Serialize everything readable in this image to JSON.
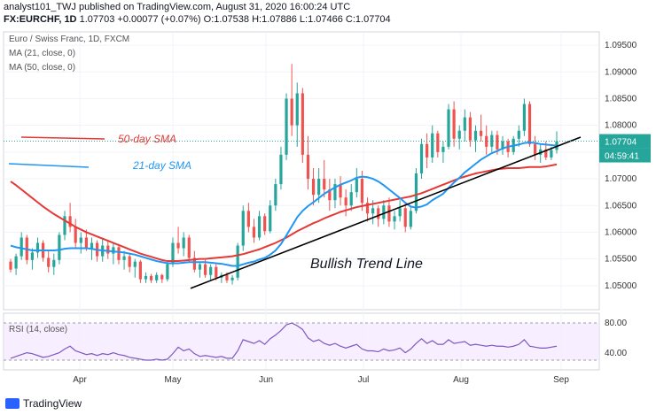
{
  "header": {
    "line1": "analyst101_TWJ published on TradingView.com, August 31, 2020 16:00:24 UTC",
    "symbol": "FX:EURCHF, 1D",
    "last": "1.07703",
    "change": "+0.00077 (+0.07%)",
    "ohlc": "O:1.07538 H:1.07886 L:1.07466 C:1.07704"
  },
  "legend": {
    "title": "Euro / Swiss Franc, 1D, FXCM",
    "ma21": "MA (21, close, 0)",
    "ma50": "MA (50, close, 0)",
    "rsi": "RSI (14, close)"
  },
  "annotations": {
    "sma50": "50-day SMA",
    "sma21": "21-day SMA",
    "trend": "Bullish Trend Line"
  },
  "price_tag": {
    "value": "1.07704",
    "countdown": "04:59:41"
  },
  "footer": {
    "brand": "TradingView"
  },
  "colors": {
    "up": "#26a69a",
    "down": "#ef5350",
    "ma21": "#2196f3",
    "ma50": "#e53935",
    "rsi": "#7e57c2",
    "trend": "#000000"
  },
  "chart_data": {
    "type": "candlestick",
    "y_ticks": [
      "1.09500",
      "1.09000",
      "1.08500",
      "1.08000",
      "1.07500",
      "1.07000",
      "1.06500",
      "1.06000",
      "1.05500",
      "1.05000"
    ],
    "ylim": [
      1.0455,
      1.0975
    ],
    "x_ticks": [
      "Apr",
      "May",
      "Jun",
      "Jul",
      "Aug",
      "Sep"
    ],
    "rsi_ticks": [
      "80.00",
      "40.00"
    ],
    "trend_line": {
      "from": [
        "May 10",
        1.0495
      ],
      "to": [
        "Aug 31",
        1.0768
      ]
    },
    "candles": [
      [
        1.0545,
        1.055,
        1.0525,
        1.053
      ],
      [
        1.0532,
        1.056,
        1.052,
        1.0555
      ],
      [
        1.0555,
        1.06,
        1.0548,
        1.059
      ],
      [
        1.059,
        1.0595,
        1.054,
        1.0548
      ],
      [
        1.0548,
        1.057,
        1.053,
        1.0562
      ],
      [
        1.0562,
        1.059,
        1.0552,
        1.058
      ],
      [
        1.058,
        1.0585,
        1.0545,
        1.0552
      ],
      [
        1.0552,
        1.0565,
        1.0525,
        1.0535
      ],
      [
        1.0535,
        1.056,
        1.052,
        1.0548
      ],
      [
        1.0548,
        1.06,
        1.054,
        1.0595
      ],
      [
        1.0595,
        1.064,
        1.0585,
        1.063
      ],
      [
        1.063,
        1.0655,
        1.06,
        1.061
      ],
      [
        1.061,
        1.0625,
        1.057,
        1.058
      ],
      [
        1.058,
        1.06,
        1.056,
        1.059
      ],
      [
        1.059,
        1.0605,
        1.0565,
        1.057
      ],
      [
        1.057,
        1.059,
        1.0548,
        1.058
      ],
      [
        1.058,
        1.0585,
        1.0545,
        1.0555
      ],
      [
        1.0555,
        1.059,
        1.0545,
        1.0575
      ],
      [
        1.0575,
        1.0585,
        1.055,
        1.056
      ],
      [
        1.056,
        1.058,
        1.054,
        1.0572
      ],
      [
        1.0572,
        1.0578,
        1.054,
        1.0548
      ],
      [
        1.0548,
        1.0565,
        1.053,
        1.0555
      ],
      [
        1.0555,
        1.056,
        1.0525,
        1.0535
      ],
      [
        1.0535,
        1.055,
        1.0515,
        1.0545
      ],
      [
        1.0545,
        1.0548,
        1.0505,
        1.0512
      ],
      [
        1.0512,
        1.0525,
        1.0505,
        1.0518
      ],
      [
        1.0518,
        1.0522,
        1.0505,
        1.051
      ],
      [
        1.051,
        1.0525,
        1.0505,
        1.052
      ],
      [
        1.052,
        1.0522,
        1.0505,
        1.0512
      ],
      [
        1.0512,
        1.0545,
        1.0508,
        1.054
      ],
      [
        1.054,
        1.059,
        1.0535,
        1.058
      ],
      [
        1.058,
        1.061,
        1.056,
        1.057
      ],
      [
        1.057,
        1.06,
        1.0555,
        1.059
      ],
      [
        1.059,
        1.0595,
        1.0545,
        1.0552
      ],
      [
        1.0552,
        1.0565,
        1.0525,
        1.053
      ],
      [
        1.053,
        1.0545,
        1.0515,
        1.054
      ],
      [
        1.054,
        1.0548,
        1.0515,
        1.052
      ],
      [
        1.052,
        1.054,
        1.051,
        1.0535
      ],
      [
        1.0535,
        1.054,
        1.051,
        1.0515
      ],
      [
        1.0515,
        1.0525,
        1.0505,
        1.052
      ],
      [
        1.052,
        1.0525,
        1.0505,
        1.051
      ],
      [
        1.051,
        1.052,
        1.0502,
        1.0515
      ],
      [
        1.0515,
        1.058,
        1.051,
        1.0575
      ],
      [
        1.0575,
        1.065,
        1.0565,
        1.064
      ],
      [
        1.064,
        1.0655,
        1.06,
        1.061
      ],
      [
        1.061,
        1.0625,
        1.058,
        1.059
      ],
      [
        1.059,
        1.064,
        1.0585,
        1.063
      ],
      [
        1.063,
        1.0635,
        1.0595,
        1.0602
      ],
      [
        1.0602,
        1.066,
        1.0598,
        1.065
      ],
      [
        1.065,
        1.07,
        1.064,
        1.069
      ],
      [
        1.069,
        1.076,
        1.068,
        1.0745
      ],
      [
        1.0745,
        1.086,
        1.0735,
        1.085
      ],
      [
        1.085,
        1.0915,
        1.078,
        1.08
      ],
      [
        1.08,
        1.088,
        1.076,
        1.086
      ],
      [
        1.086,
        1.087,
        1.073,
        1.0745
      ],
      [
        1.0745,
        1.078,
        1.068,
        1.07
      ],
      [
        1.07,
        1.072,
        1.065,
        1.067
      ],
      [
        1.067,
        1.072,
        1.0655,
        1.07
      ],
      [
        1.07,
        1.0735,
        1.0665,
        1.068
      ],
      [
        1.068,
        1.07,
        1.064,
        1.066
      ],
      [
        1.066,
        1.07,
        1.0645,
        1.069
      ],
      [
        1.069,
        1.0705,
        1.065,
        1.0665
      ],
      [
        1.0665,
        1.068,
        1.063,
        1.065
      ],
      [
        1.065,
        1.069,
        1.064,
        1.0675
      ],
      [
        1.0675,
        1.072,
        1.0665,
        1.07
      ],
      [
        1.07,
        1.0715,
        1.064,
        1.0655
      ],
      [
        1.0655,
        1.0665,
        1.062,
        1.0635
      ],
      [
        1.0635,
        1.066,
        1.0615,
        1.0645
      ],
      [
        1.0645,
        1.065,
        1.061,
        1.0625
      ],
      [
        1.0625,
        1.066,
        1.0615,
        1.065
      ],
      [
        1.065,
        1.0665,
        1.061,
        1.062
      ],
      [
        1.062,
        1.064,
        1.0605,
        1.063
      ],
      [
        1.063,
        1.066,
        1.062,
        1.0645
      ],
      [
        1.0645,
        1.0655,
        1.06,
        1.061
      ],
      [
        1.061,
        1.065,
        1.0605,
        1.064
      ],
      [
        1.064,
        1.072,
        1.0635,
        1.071
      ],
      [
        1.071,
        1.0775,
        1.07,
        1.0765
      ],
      [
        1.0765,
        1.0785,
        1.072,
        1.074
      ],
      [
        1.074,
        1.08,
        1.073,
        1.0785
      ],
      [
        1.0785,
        1.079,
        1.074,
        1.075
      ],
      [
        1.075,
        1.077,
        1.073,
        1.076
      ],
      [
        1.076,
        1.084,
        1.0755,
        1.083
      ],
      [
        1.083,
        1.0845,
        1.076,
        1.0775
      ],
      [
        1.0775,
        1.08,
        1.0755,
        1.079
      ],
      [
        1.079,
        1.083,
        1.077,
        1.0815
      ],
      [
        1.0815,
        1.0825,
        1.076,
        1.0772
      ],
      [
        1.0772,
        1.08,
        1.075,
        1.079
      ],
      [
        1.079,
        1.082,
        1.077,
        1.078
      ],
      [
        1.078,
        1.08,
        1.0745,
        1.076
      ],
      [
        1.076,
        1.079,
        1.075,
        1.0782
      ],
      [
        1.0782,
        1.079,
        1.0745,
        1.0755
      ],
      [
        1.0755,
        1.078,
        1.0745,
        1.077
      ],
      [
        1.077,
        1.0775,
        1.074,
        1.075
      ],
      [
        1.075,
        1.078,
        1.0745,
        1.0775
      ],
      [
        1.0775,
        1.08,
        1.076,
        1.079
      ],
      [
        1.079,
        1.085,
        1.078,
        1.084
      ],
      [
        1.084,
        1.0845,
        1.076,
        1.0765
      ],
      [
        1.0765,
        1.078,
        1.0735,
        1.0745
      ],
      [
        1.0745,
        1.0765,
        1.073,
        1.0755
      ],
      [
        1.0755,
        1.077,
        1.0735,
        1.074
      ],
      [
        1.074,
        1.076,
        1.0735,
        1.0754
      ],
      [
        1.0754,
        1.0789,
        1.0747,
        1.077
      ]
    ],
    "ma21": [
      1.0575,
      1.0572,
      1.057,
      1.0568,
      1.0566,
      1.0566,
      1.0566,
      1.0566,
      1.0566,
      1.0567,
      1.0569,
      1.057,
      1.057,
      1.057,
      1.057,
      1.0569,
      1.0567,
      1.0566,
      1.0565,
      1.0564,
      1.0563,
      1.0562,
      1.056,
      1.0558,
      1.0555,
      1.0552,
      1.0549,
      1.0546,
      1.0544,
      1.0542,
      1.0542,
      1.0542,
      1.0543,
      1.0544,
      1.0544,
      1.0544,
      1.0544,
      1.0543,
      1.0542,
      1.0541,
      1.0539,
      1.0537,
      1.0537,
      1.054,
      1.0543,
      1.0545,
      1.0549,
      1.0552,
      1.0558,
      1.0566,
      1.0578,
      1.0594,
      1.0611,
      1.0628,
      1.064,
      1.0649,
      1.0656,
      1.0664,
      1.0672,
      1.0678,
      1.0684,
      1.0689,
      1.0693,
      1.0697,
      1.0702,
      1.0704,
      1.0703,
      1.07,
      1.0695,
      1.0688,
      1.068,
      1.0672,
      1.0664,
      1.0655,
      1.0648,
      1.0646,
      1.0648,
      1.0652,
      1.066,
      1.0666,
      1.0672,
      1.0683,
      1.0693,
      1.0702,
      1.0712,
      1.072,
      1.0728,
      1.0736,
      1.0742,
      1.0748,
      1.0752,
      1.0757,
      1.076,
      1.0762,
      1.0764,
      1.0767,
      1.0768,
      1.0767,
      1.0765,
      1.0764,
      1.0763,
      1.0762
    ],
    "ma50": [
      1.0695,
      1.0688,
      1.068,
      1.0672,
      1.0664,
      1.0656,
      1.0648,
      1.0641,
      1.0634,
      1.0628,
      1.0622,
      1.0616,
      1.061,
      1.0605,
      1.06,
      1.0596,
      1.0592,
      1.0588,
      1.0584,
      1.058,
      1.0576,
      1.0572,
      1.0568,
      1.0564,
      1.056,
      1.0557,
      1.0554,
      1.0551,
      1.0548,
      1.0546,
      1.0546,
      1.0546,
      1.0547,
      1.0548,
      1.0549,
      1.055,
      1.055,
      1.0551,
      1.0552,
      1.0553,
      1.0554,
      1.0555,
      1.0557,
      1.0559,
      1.0562,
      1.0565,
      1.0568,
      1.0572,
      1.0576,
      1.058,
      1.0585,
      1.059,
      1.0596,
      1.0602,
      1.0607,
      1.0612,
      1.0617,
      1.0621,
      1.0626,
      1.063,
      1.0634,
      1.0638,
      1.0641,
      1.0644,
      1.0647,
      1.0649,
      1.0651,
      1.0653,
      1.0655,
      1.0657,
      1.0659,
      1.0661,
      1.0663,
      1.0665,
      1.0667,
      1.067,
      1.0673,
      1.0677,
      1.0681,
      1.0685,
      1.0689,
      1.0693,
      1.0697,
      1.0701,
      1.0704,
      1.0707,
      1.071,
      1.0712,
      1.0714,
      1.0716,
      1.0718,
      1.0719,
      1.072,
      1.072,
      1.072,
      1.0721,
      1.0722,
      1.0722,
      1.0722,
      1.0723,
      1.0725,
      1.0727
    ],
    "rsi": [
      42,
      44,
      46,
      48,
      47,
      45,
      43,
      44,
      46,
      48,
      52,
      55,
      50,
      48,
      46,
      47,
      45,
      47,
      46,
      48,
      46,
      45,
      43,
      42,
      41,
      40,
      40,
      41,
      40,
      41,
      47,
      54,
      50,
      52,
      47,
      44,
      45,
      44,
      43,
      44,
      42,
      42,
      50,
      62,
      60,
      58,
      61,
      57,
      63,
      67,
      72,
      78,
      80,
      77,
      73,
      64,
      60,
      62,
      58,
      56,
      58,
      55,
      53,
      55,
      57,
      52,
      50,
      50,
      49,
      52,
      50,
      51,
      53,
      48,
      52,
      58,
      63,
      58,
      61,
      57,
      57,
      62,
      58,
      59,
      60,
      56,
      57,
      56,
      55,
      56,
      55,
      55,
      54,
      55,
      57,
      62,
      55,
      54,
      53,
      53,
      54,
      55
    ]
  }
}
